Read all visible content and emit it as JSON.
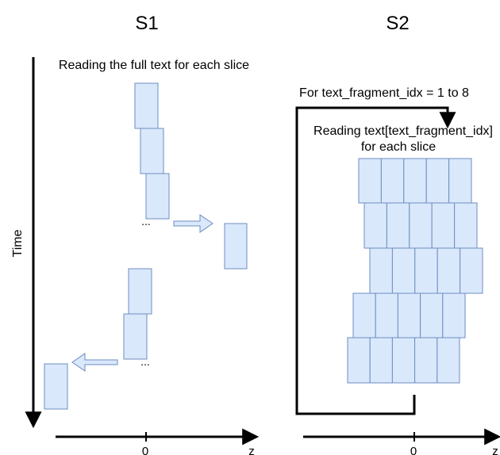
{
  "panels": {
    "s1": {
      "title": "S1",
      "caption": "Reading the full text for each slice",
      "ellipsis_upper": "...",
      "ellipsis_lower": "...",
      "axis_zero": "0",
      "axis_label": "z"
    },
    "s2": {
      "title": "S2",
      "loop_label": "For text_fragment_idx = 1 to 8",
      "caption_line1": "Reading text[text_fragment_idx]",
      "caption_line2": "for each slice",
      "axis_zero": "0",
      "axis_label": "z"
    }
  },
  "time_axis": {
    "label": "Time"
  },
  "colors": {
    "slice_fill": "#dae8fc",
    "slice_stroke": "#6c8ebf",
    "line": "#000000"
  }
}
